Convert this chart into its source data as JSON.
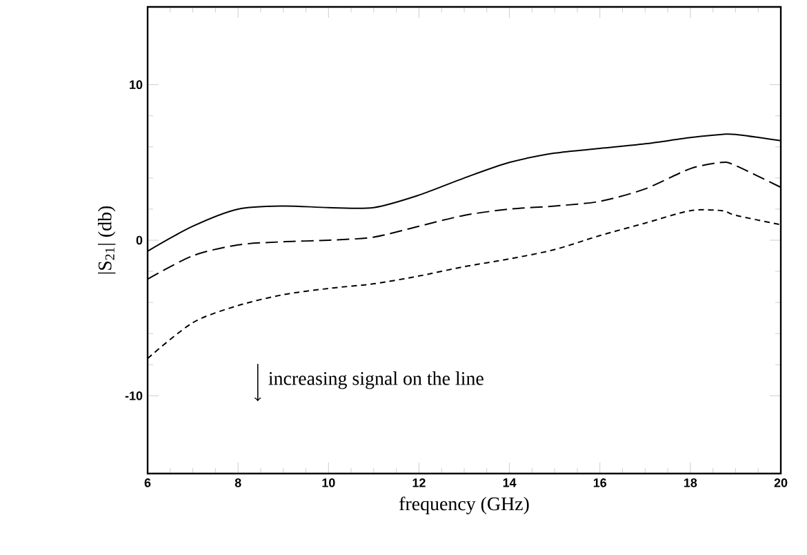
{
  "chart_data": {
    "type": "line",
    "xlabel": "frequency (GHz)",
    "ylabel": "|S$_{21}$| (db)",
    "xlim": [
      6,
      20
    ],
    "ylim": [
      -15,
      15
    ],
    "xticks": [
      6,
      8,
      10,
      12,
      14,
      16,
      18,
      20
    ],
    "yticks": [
      -10,
      0,
      10
    ],
    "grid": false,
    "marker": "none",
    "annotations": [
      "increasing signal on the line"
    ],
    "x": [
      6,
      7,
      8,
      9,
      10,
      11,
      12,
      13,
      14,
      15,
      16,
      17,
      18,
      18.7,
      19,
      20
    ],
    "series": [
      {
        "color": "#000000",
        "line_style": "solid",
        "values": [
          -0.7,
          0.9,
          2.0,
          2.2,
          2.1,
          2.1,
          2.9,
          4.0,
          5.0,
          5.6,
          5.9,
          6.2,
          6.6,
          6.8,
          6.8,
          6.4
        ]
      },
      {
        "color": "#000000",
        "line_style": "dashed",
        "values": [
          -2.5,
          -1.0,
          -0.3,
          -0.1,
          0.0,
          0.2,
          0.9,
          1.6,
          2.0,
          2.2,
          2.5,
          3.3,
          4.6,
          5.0,
          4.8,
          3.4
        ]
      },
      {
        "color": "#000000",
        "line_style": "dotted",
        "values": [
          -7.6,
          -5.3,
          -4.2,
          -3.5,
          -3.1,
          -2.8,
          -2.3,
          -1.7,
          -1.2,
          -0.6,
          0.3,
          1.1,
          1.9,
          1.9,
          1.6,
          1.0
        ]
      }
    ]
  }
}
